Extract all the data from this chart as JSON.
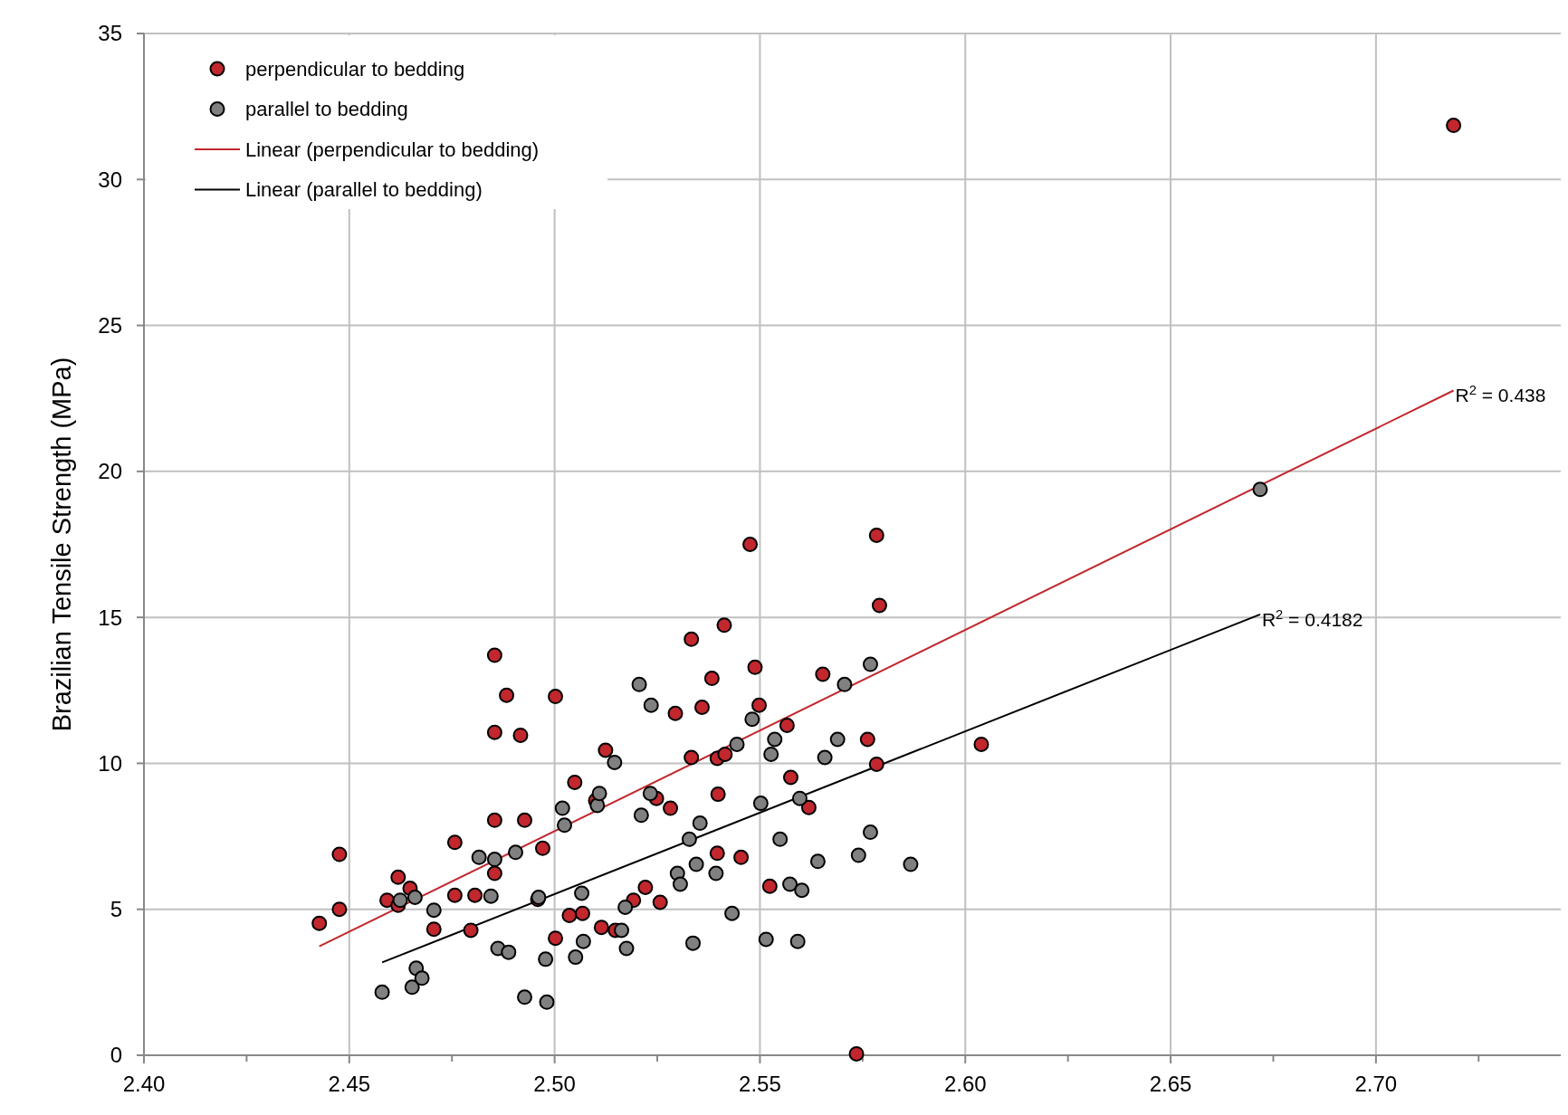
{
  "chart_data": {
    "type": "scatter",
    "ylabel": "Brazilian Tensile Strength (MPa)",
    "xlim": [
      2.4,
      2.745
    ],
    "ylim": [
      0,
      35
    ],
    "xticks": [
      {
        "value": 2.4,
        "label": "2.40"
      },
      {
        "value": 2.425,
        "label": null
      },
      {
        "value": 2.45,
        "label": "2.45"
      },
      {
        "value": 2.475,
        "label": null
      },
      {
        "value": 2.5,
        "label": "2.50"
      },
      {
        "value": 2.525,
        "label": null
      },
      {
        "value": 2.55,
        "label": "2.55"
      },
      {
        "value": 2.575,
        "label": null
      },
      {
        "value": 2.6,
        "label": "2.60"
      },
      {
        "value": 2.625,
        "label": null
      },
      {
        "value": 2.65,
        "label": "2.65"
      },
      {
        "value": 2.675,
        "label": null
      },
      {
        "value": 2.7,
        "label": "2.70"
      },
      {
        "value": 2.725,
        "label": null
      }
    ],
    "yticks": [
      0,
      5,
      10,
      15,
      20,
      25,
      30,
      35
    ],
    "grid": true,
    "legend": "top left",
    "marker": "circle",
    "series": [
      {
        "name": "perpendicular to bedding",
        "color": "#c1272d",
        "x": [
          2.4427,
          2.4476,
          2.4476,
          2.4592,
          2.4619,
          2.4619,
          2.4648,
          2.4706,
          2.4757,
          2.4757,
          2.4796,
          2.4806,
          2.4854,
          2.4854,
          2.4854,
          2.4854,
          2.4883,
          2.4917,
          2.4927,
          2.4959,
          2.4971,
          2.5002,
          2.5002,
          2.5036,
          2.5049,
          2.5068,
          2.51,
          2.5114,
          2.5124,
          2.5148,
          2.5192,
          2.5221,
          2.5248,
          2.5257,
          2.5282,
          2.5294,
          2.5333,
          2.5333,
          2.5359,
          2.5383,
          2.5396,
          2.5396,
          2.5398,
          2.5413,
          2.5415,
          2.5454,
          2.5476,
          2.5488,
          2.5498,
          2.5524,
          2.5566,
          2.5575,
          2.5619,
          2.5653,
          2.5735,
          2.5762,
          2.5784,
          2.5784,
          2.5791,
          2.6039,
          2.7189
        ],
        "values": [
          4.52,
          6.88,
          5.0,
          5.31,
          6.1,
          5.14,
          5.72,
          4.32,
          7.29,
          5.48,
          4.28,
          5.48,
          13.7,
          11.06,
          8.05,
          6.23,
          12.33,
          10.96,
          8.05,
          5.34,
          7.09,
          12.29,
          4.01,
          4.79,
          9.35,
          4.86,
          8.73,
          4.38,
          10.45,
          4.28,
          5.31,
          5.75,
          8.8,
          5.24,
          8.46,
          11.71,
          14.25,
          10.2,
          11.92,
          12.91,
          10.17,
          6.92,
          8.94,
          14.73,
          10.31,
          6.78,
          17.5,
          13.29,
          11.99,
          5.79,
          11.3,
          9.52,
          8.49,
          13.05,
          0.05,
          10.82,
          17.81,
          9.97,
          15.41,
          10.65,
          31.85
        ]
      },
      {
        "name": "parallel to bedding",
        "color": "#808080",
        "x": [
          2.458,
          2.4624,
          2.466,
          2.4653,
          2.4663,
          2.4677,
          2.4706,
          2.4816,
          2.4845,
          2.4854,
          2.4862,
          2.4888,
          2.4905,
          2.4927,
          2.4961,
          2.4978,
          2.4981,
          2.5019,
          2.5024,
          2.5051,
          2.5066,
          2.507,
          2.5104,
          2.5109,
          2.5146,
          2.5163,
          2.5172,
          2.5175,
          2.5206,
          2.5211,
          2.5235,
          2.5233,
          2.5299,
          2.5306,
          2.5328,
          2.5337,
          2.5345,
          2.5354,
          2.5393,
          2.5432,
          2.5444,
          2.5481,
          2.5502,
          2.5515,
          2.5527,
          2.5536,
          2.5549,
          2.5573,
          2.5592,
          2.5597,
          2.5602,
          2.5641,
          2.5658,
          2.5689,
          2.5706,
          2.574,
          2.5769,
          2.5769,
          2.5867,
          2.6718
        ],
        "values": [
          2.16,
          5.31,
          5.41,
          2.33,
          2.98,
          2.64,
          4.97,
          6.78,
          5.45,
          6.71,
          3.66,
          3.53,
          6.95,
          1.99,
          5.41,
          3.29,
          1.82,
          8.46,
          7.88,
          3.36,
          5.55,
          3.9,
          8.56,
          8.97,
          10.03,
          4.28,
          5.07,
          3.66,
          12.7,
          8.22,
          11.99,
          8.97,
          6.23,
          5.86,
          7.4,
          3.84,
          6.54,
          7.95,
          6.23,
          4.86,
          10.65,
          11.51,
          8.63,
          3.97,
          10.31,
          10.82,
          7.4,
          5.86,
          3.9,
          8.8,
          5.65,
          6.64,
          10.2,
          10.82,
          12.7,
          6.85,
          13.39,
          7.64,
          6.54,
          19.38
        ]
      },
      {
        "name": "Linear (perpendicular to bedding)",
        "type": "line",
        "color": "#c1272d",
        "marker": "none",
        "x": [
          2.4427,
          2.7189
        ],
        "values": [
          3.73,
          22.77
        ]
      },
      {
        "name": "Linear (parallel to bedding)",
        "type": "line",
        "color": "#000000",
        "marker": "none",
        "x": [
          2.458,
          2.6718
        ],
        "values": [
          3.18,
          15.1
        ]
      }
    ],
    "annotations": [
      {
        "text": "R$^{2}$ = 0.438",
        "x": 2.7189,
        "y": 22.77
      },
      {
        "text": "R$^{2}$ = 0.4182",
        "x": 2.6718,
        "y": 15.1
      }
    ]
  }
}
